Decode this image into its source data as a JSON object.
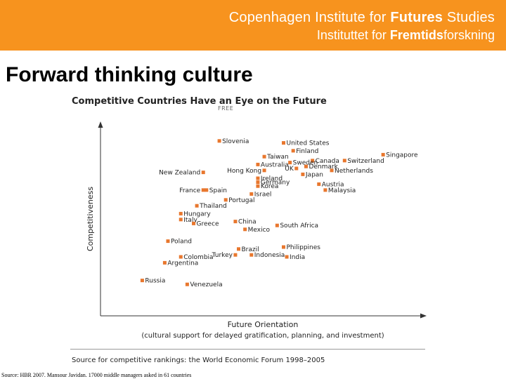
{
  "header": {
    "institute_en_prefix": "Copenhagen Institute for ",
    "institute_en_bold": "Futures",
    "institute_en_suffix": " Studies",
    "institute_da_prefix": "Instituttet for ",
    "institute_da_bold": "Fremtids",
    "institute_da_suffix": "forskning",
    "banner_color": "#f7931e"
  },
  "slide_title": "Forward thinking culture",
  "footer": "Source: HBR 2007. Mansour Javidan. 17000 middle managers asked in 61 countries",
  "chart_data": {
    "type": "scatter",
    "title": "Competitive Countries Have an Eye on the Future",
    "annotation_top": "FREE",
    "xlabel": "Future Orientation",
    "xlabel_sub": "(cultural support for delayed gratification, planning, and investment)",
    "ylabel": "Competitiveness",
    "source": "Source for competitive rankings: the World Economic Forum 1998–2005",
    "marker_color": "#e8772e",
    "grid": false,
    "xlim": [
      0,
      100
    ],
    "ylim": [
      0,
      100
    ],
    "points": [
      {
        "label": "Slovenia",
        "x": 37,
        "y": 89,
        "label_pos": "right"
      },
      {
        "label": "United States",
        "x": 57,
        "y": 88,
        "label_pos": "right"
      },
      {
        "label": "Finland",
        "x": 60,
        "y": 84,
        "label_pos": "right"
      },
      {
        "label": "Taiwan",
        "x": 51,
        "y": 81,
        "label_pos": "right"
      },
      {
        "label": "Singapore",
        "x": 88,
        "y": 82,
        "label_pos": "right"
      },
      {
        "label": "Canada",
        "x": 66,
        "y": 79,
        "label_pos": "right"
      },
      {
        "label": "Switzerland",
        "x": 76,
        "y": 79,
        "label_pos": "right"
      },
      {
        "label": "Australia",
        "x": 49,
        "y": 77,
        "label_pos": "right"
      },
      {
        "label": "Sweden",
        "x": 59,
        "y": 78,
        "label_pos": "right"
      },
      {
        "label": "Denmark",
        "x": 64,
        "y": 76,
        "label_pos": "right"
      },
      {
        "label": "UK",
        "x": 61,
        "y": 75,
        "label_pos": "left"
      },
      {
        "label": "Netherlands",
        "x": 72,
        "y": 74,
        "label_pos": "right"
      },
      {
        "label": "Hong Kong",
        "x": 51,
        "y": 74,
        "label_pos": "left"
      },
      {
        "label": "Japan",
        "x": 63,
        "y": 72,
        "label_pos": "right"
      },
      {
        "label": "New Zealand",
        "x": 32,
        "y": 73,
        "label_pos": "left"
      },
      {
        "label": "Ireland",
        "x": 49,
        "y": 70,
        "label_pos": "right"
      },
      {
        "label": "Germany",
        "x": 49,
        "y": 68,
        "label_pos": "right"
      },
      {
        "label": "Korea",
        "x": 49,
        "y": 66,
        "label_pos": "right"
      },
      {
        "label": "Austria",
        "x": 68,
        "y": 67,
        "label_pos": "right"
      },
      {
        "label": "Malaysia",
        "x": 70,
        "y": 64,
        "label_pos": "right"
      },
      {
        "label": "France",
        "x": 32,
        "y": 64,
        "label_pos": "left"
      },
      {
        "label": "Spain",
        "x": 33,
        "y": 64,
        "label_pos": "right"
      },
      {
        "label": "Israel",
        "x": 47,
        "y": 62,
        "label_pos": "right"
      },
      {
        "label": "Portugal",
        "x": 39,
        "y": 59,
        "label_pos": "right"
      },
      {
        "label": "Thailand",
        "x": 30,
        "y": 56,
        "label_pos": "right"
      },
      {
        "label": "Hungary",
        "x": 25,
        "y": 52,
        "label_pos": "right"
      },
      {
        "label": "Italy",
        "x": 25,
        "y": 49,
        "label_pos": "right"
      },
      {
        "label": "Greece",
        "x": 29,
        "y": 47,
        "label_pos": "right"
      },
      {
        "label": "China",
        "x": 42,
        "y": 48,
        "label_pos": "right"
      },
      {
        "label": "Mexico",
        "x": 45,
        "y": 44,
        "label_pos": "right"
      },
      {
        "label": "South Africa",
        "x": 55,
        "y": 46,
        "label_pos": "right"
      },
      {
        "label": "Poland",
        "x": 21,
        "y": 38,
        "label_pos": "right"
      },
      {
        "label": "Brazil",
        "x": 43,
        "y": 34,
        "label_pos": "right"
      },
      {
        "label": "Philippines",
        "x": 57,
        "y": 35,
        "label_pos": "right"
      },
      {
        "label": "Turkey",
        "x": 42,
        "y": 31,
        "label_pos": "left"
      },
      {
        "label": "Indonesia",
        "x": 47,
        "y": 31,
        "label_pos": "right"
      },
      {
        "label": "India",
        "x": 58,
        "y": 30,
        "label_pos": "right"
      },
      {
        "label": "Colombia",
        "x": 25,
        "y": 30,
        "label_pos": "right"
      },
      {
        "label": "Argentina",
        "x": 20,
        "y": 27,
        "label_pos": "right"
      },
      {
        "label": "Russia",
        "x": 13,
        "y": 18,
        "label_pos": "right"
      },
      {
        "label": "Venezuela",
        "x": 27,
        "y": 16,
        "label_pos": "right"
      }
    ]
  }
}
